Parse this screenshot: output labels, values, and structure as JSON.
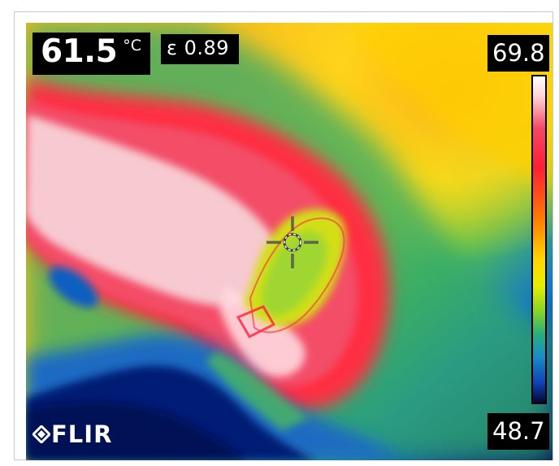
{
  "image": {
    "type": "thermal-camera-frame",
    "palette_colors": {
      "hot": "#ffffff",
      "warm_pink": "#f24866",
      "red": "#ff1f34",
      "orange": "#ff7e00",
      "yellow": "#ffd500",
      "green": "#85d42a",
      "blue": "#0f42b5",
      "cold": "#020733"
    }
  },
  "measurement": {
    "temperature_value": "61.5",
    "temperature_unit": "°C",
    "emissivity": "ε 0.89"
  },
  "scale": {
    "max": "69.8",
    "min": "48.7"
  },
  "branding": {
    "logo_text": "FLIR",
    "logo_icon": "flir-diamond-icon"
  },
  "cursor": {
    "icon": "crosshair-icon"
  }
}
